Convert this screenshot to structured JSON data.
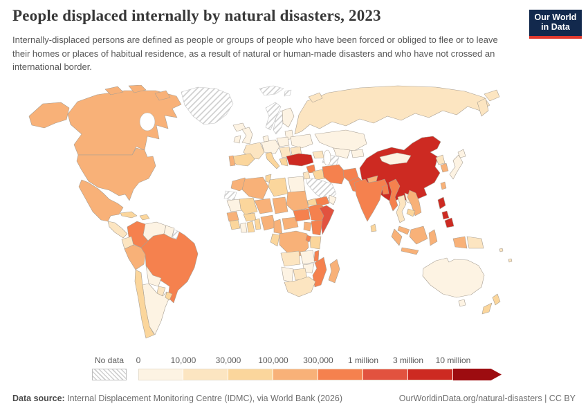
{
  "header": {
    "title": "People displaced internally by natural disasters, 2023",
    "subtitle": "Internally-displaced persons are defined as people or groups of people who have been forced or obliged to flee or to leave their homes or places of habitual residence, as a result of natural or human-made disasters and who have not crossed an international border.",
    "logo": {
      "line1": "Our World",
      "line2": "in Data",
      "bg_color": "#12294d",
      "stripe_color": "#e0392e"
    }
  },
  "legend": {
    "no_data_label": "No data",
    "ticks": [
      "0",
      "10,000",
      "30,000",
      "100,000",
      "300,000",
      "1 million",
      "3 million",
      "10 million"
    ],
    "colors": [
      "#fdf3e3",
      "#fce5c1",
      "#fbd69c",
      "#f8b178",
      "#f5814e",
      "#e2523f",
      "#cd2a22",
      "#9d0c10"
    ]
  },
  "footer": {
    "source_label": "Data source:",
    "source_text": " Internal Displacement Monitoring Centre (IDMC), via World Bank (2026)",
    "link_text": "OurWorldinData.org/natural-disasters | CC BY"
  },
  "chart_data": {
    "type": "choropleth-map",
    "title": "People displaced internally by natural disasters, 2023",
    "unit": "people",
    "bins": [
      "0-10,000",
      "10,000-30,000",
      "30,000-100,000",
      "100,000-300,000",
      "300,000-1 million",
      "1-3 million",
      "3-10 million",
      "10 million+",
      "no data"
    ],
    "legend_position": "bottom"
  },
  "map": {
    "ocean_color": "#ffffff",
    "border_color": "#a89f93",
    "no_data_key": "nd",
    "country_bins": {
      "alaska": 3,
      "canada": 3,
      "arctic1": 3,
      "arctic2": 3,
      "arctic3": 3,
      "greenland": "nd",
      "usa": 3,
      "mexico": 3,
      "camerica": 1,
      "cuba": 2,
      "hispaniola": 2,
      "colombia": 4,
      "venezuela": 0,
      "guyana": 0,
      "frenchguiana": "nd",
      "ecuador": 1,
      "peru": 3,
      "brazil": 4,
      "bolivia": 0,
      "paraguay": 1,
      "chile": 2,
      "argentina": 0,
      "uruguay": 2,
      "iceland": 0,
      "svalbard1": "nd",
      "svalbard2": "nd",
      "uk": 0,
      "ireland": 0,
      "norway": "nd",
      "sweden": "nd",
      "finland": 0,
      "baltics": 0,
      "denmark": 0,
      "germany": 0,
      "poland": 0,
      "france": 1,
      "spain": 2,
      "portugal": 3,
      "italy": 2,
      "balkans": 1,
      "greece": 2,
      "ukraine": 0,
      "romania": 1,
      "russia": 1,
      "kamchatka": 1,
      "chukotka": 1,
      "novaya": 1,
      "kazakhstan": 0,
      "uzbekistan": 0,
      "turkmenistan": "nd",
      "kyrgyzstan": 0,
      "caucasus": 1,
      "turkey": 6,
      "syria": 4,
      "iraq": 2,
      "iran": 4,
      "afghanistan": 4,
      "pakistan": 4,
      "saudiarabia": "nd",
      "yemen": 4,
      "oman": 0,
      "jordan": 1,
      "morocco": 3,
      "westernsahara": "nd",
      "algeria": 3,
      "tunisia": 2,
      "libya": 2,
      "egypt": 0,
      "mauritania": 0,
      "mali": 2,
      "niger": 3,
      "chad": 3,
      "sudan": 3,
      "eritrea": 2,
      "djibouti": 4,
      "senegal": 3,
      "guinea": 2,
      "ivorycoast": 0,
      "ghana": 2,
      "burkinafaso": 2,
      "togobenin": 2,
      "nigeria": 3,
      "cameroon": 3,
      "car": 3,
      "southsudan": 4,
      "ethiopia": 4,
      "somalia": 5,
      "kenya": 4,
      "uganda": 3,
      "drc": 3,
      "congo": 2,
      "tanzania": 2,
      "rwandaburundi": 4,
      "angola": 1,
      "zambia": 0,
      "malawi": 4,
      "mozambique": 4,
      "zimbabwe": 0,
      "botswana": 1,
      "namibia": 0,
      "southafrica": 1,
      "madagascar": 3,
      "china": 6,
      "hainan": 6,
      "taiwan": 3,
      "mongolia": 0,
      "northkorea": 1,
      "southkorea": 3,
      "hokkaido": 0,
      "honshu": 0,
      "nepal": 3,
      "india": 4,
      "srilanka": 2,
      "bangladesh": 4,
      "myanmar": 4,
      "thailand": 1,
      "laos": 0,
      "vietnam": 3,
      "cambodia": 2,
      "malaysia": 3,
      "sumatra": 3,
      "java": 3,
      "borneo": 3,
      "sulawesi": 3,
      "westpapua": 3,
      "png": 1,
      "philippines1": 6,
      "philippines2": 6,
      "philippines3": 6,
      "australia": 0,
      "tasmania": 0,
      "nznorth": 2,
      "nzsouth": 2,
      "fiji1": 1,
      "fiji2": 1
    }
  }
}
